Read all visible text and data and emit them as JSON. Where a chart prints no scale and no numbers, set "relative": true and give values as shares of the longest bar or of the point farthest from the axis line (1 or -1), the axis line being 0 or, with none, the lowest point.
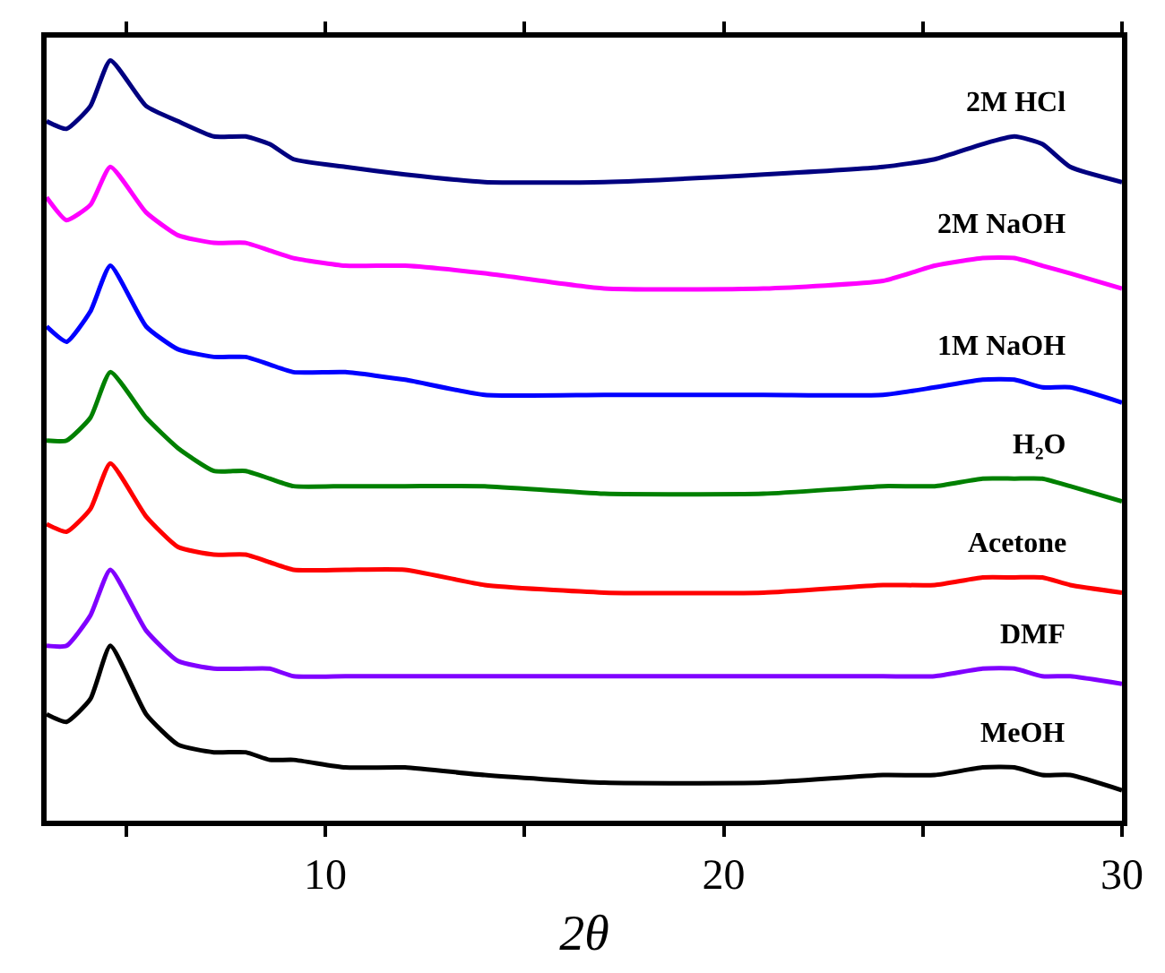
{
  "chart_data": {
    "type": "line",
    "xlabel": "2θ",
    "relative": true,
    "grid": false,
    "legend": false,
    "marker": "none",
    "line_style": "solid",
    "xlim": [
      3,
      30
    ],
    "xticks": [
      {
        "value": 5,
        "label": null
      },
      10,
      {
        "value": 15,
        "label": null
      },
      20,
      {
        "value": 25,
        "label": null
      },
      30
    ],
    "x": [
      3,
      3.5,
      4.1,
      4.6,
      5.5,
      6.3,
      7.2,
      8,
      8.6,
      9.2,
      10.5,
      12,
      14,
      17,
      21,
      24,
      25.3,
      26.5,
      27.3,
      28,
      28.7,
      30
    ],
    "series": [
      {
        "name": "MeOH",
        "color": "#000000",
        "values": [
          0.14,
          0.13,
          0.16,
          0.23,
          0.14,
          0.1,
          0.09,
          0.09,
          0.08,
          0.08,
          0.07,
          0.07,
          0.06,
          0.05,
          0.05,
          0.06,
          0.06,
          0.07,
          0.07,
          0.06,
          0.06,
          0.04
        ]
      },
      {
        "name": "DMF",
        "color": "#8000ff",
        "values": [
          0.23,
          0.23,
          0.27,
          0.33,
          0.25,
          0.21,
          0.2,
          0.2,
          0.2,
          0.19,
          0.19,
          0.19,
          0.19,
          0.19,
          0.19,
          0.19,
          0.19,
          0.2,
          0.2,
          0.19,
          0.19,
          0.18
        ]
      },
      {
        "name": "Acetone",
        "color": "#ff0000",
        "values": [
          0.39,
          0.38,
          0.41,
          0.47,
          0.4,
          0.36,
          0.35,
          0.35,
          0.34,
          0.33,
          0.33,
          0.33,
          0.31,
          0.3,
          0.3,
          0.31,
          0.31,
          0.32,
          0.32,
          0.32,
          0.31,
          0.3
        ]
      },
      {
        "name": "H₂O",
        "color": "#008000",
        "values": [
          0.5,
          0.5,
          0.53,
          0.59,
          0.53,
          0.49,
          0.46,
          0.46,
          0.45,
          0.44,
          0.44,
          0.44,
          0.44,
          0.43,
          0.43,
          0.44,
          0.44,
          0.45,
          0.45,
          0.45,
          0.44,
          0.42
        ]
      },
      {
        "name": "1M NaOH",
        "color": "#0000ff",
        "values": [
          0.65,
          0.63,
          0.67,
          0.73,
          0.65,
          0.62,
          0.61,
          0.61,
          0.6,
          0.59,
          0.59,
          0.58,
          0.56,
          0.56,
          0.56,
          0.56,
          0.57,
          0.58,
          0.58,
          0.57,
          0.57,
          0.55
        ]
      },
      {
        "name": "2M NaOH",
        "color": "#ff00ff",
        "values": [
          0.82,
          0.79,
          0.81,
          0.86,
          0.8,
          0.77,
          0.76,
          0.76,
          0.75,
          0.74,
          0.73,
          0.73,
          0.72,
          0.7,
          0.7,
          0.71,
          0.73,
          0.74,
          0.74,
          0.73,
          0.72,
          0.7
        ]
      },
      {
        "name": "2M HCl",
        "color": "#000080",
        "values": [
          0.92,
          0.91,
          0.94,
          1,
          0.94,
          0.92,
          0.9,
          0.9,
          0.89,
          0.87,
          0.86,
          0.85,
          0.84,
          0.84,
          0.85,
          0.86,
          0.87,
          0.89,
          0.9,
          0.89,
          0.86,
          0.84
        ]
      }
    ]
  }
}
